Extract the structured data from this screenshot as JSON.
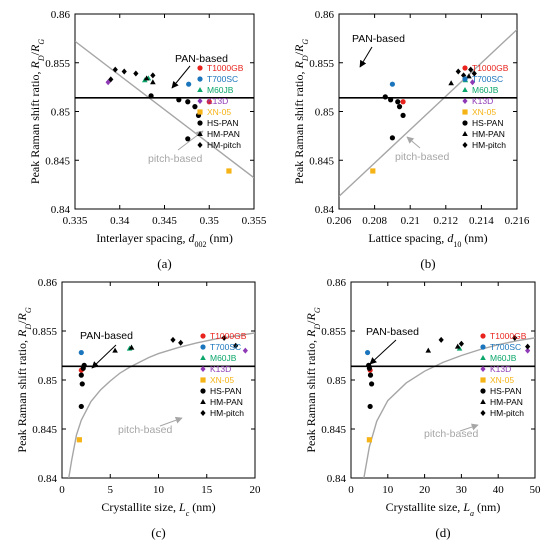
{
  "colors": {
    "T1000GB": "#e8231d",
    "T700SC": "#1b75bc",
    "M60JB": "#0aa66b",
    "K13D": "#8e3ab5",
    "XN-05": "#f5b316",
    "HS-PAN": "#000000",
    "HM-PAN": "#000000",
    "HM-pitch": "#000000",
    "pitch_line": "#a6a6a6",
    "pan_line": "#000000"
  },
  "legend": [
    "T1000GB",
    "T700SC",
    "M60JB",
    "K13D",
    "XN-05",
    "HS-PAN",
    "HM-PAN",
    "HM-pitch"
  ],
  "chart_data": [
    {
      "type": "scatter",
      "panel": "(a)",
      "ylabel": "Peak Raman shift ratio, R_D/R_G",
      "xlabel": "Interlayer spacing, d_002 (nm)",
      "xlim": [
        0.335,
        0.355
      ],
      "ylim": [
        0.84,
        0.86
      ],
      "xticks": [
        "0.335",
        "0.34",
        "0.345",
        "0.35",
        "0.355"
      ],
      "yticks": [
        "0.84",
        "0.845",
        "0.85",
        "0.855",
        "0.86"
      ],
      "pan_label": "PAN-based",
      "pitch_label": "pitch-based",
      "pan_level": 0.8514,
      "pitch_line": [
        [
          0.335,
          0.8572
        ],
        [
          0.355,
          0.8432
        ]
      ],
      "series": [
        {
          "name": "T1000GB",
          "marker": "circle",
          "points": [
            [
              0.35,
              0.851
            ]
          ]
        },
        {
          "name": "T700SC",
          "marker": "circle",
          "points": [
            [
              0.3477,
              0.8528
            ]
          ]
        },
        {
          "name": "M60JB",
          "marker": "triangle",
          "points": [
            [
              0.3428,
              0.8532
            ],
            [
              0.3432,
              0.8534
            ]
          ]
        },
        {
          "name": "K13D",
          "marker": "diamond",
          "points": [
            [
              0.3387,
              0.853
            ]
          ]
        },
        {
          "name": "XN-05",
          "marker": "square",
          "points": [
            [
              0.3522,
              0.8439
            ]
          ]
        },
        {
          "name": "HS-PAN",
          "marker": "circle",
          "points": [
            [
              0.3476,
              0.8472
            ],
            [
              0.3484,
              0.8505
            ],
            [
              0.3488,
              0.8496
            ],
            [
              0.3476,
              0.851
            ],
            [
              0.3466,
              0.8512
            ],
            [
              0.3435,
              0.8516
            ]
          ]
        },
        {
          "name": "HM-PAN",
          "marker": "triangle",
          "points": [
            [
              0.3437,
              0.853
            ],
            [
              0.343,
              0.8534
            ]
          ]
        },
        {
          "name": "HM-pitch",
          "marker": "diamond",
          "points": [
            [
              0.3395,
              0.8543
            ],
            [
              0.3405,
              0.8541
            ],
            [
              0.3418,
              0.8539
            ],
            [
              0.3437,
              0.8537
            ],
            [
              0.339,
              0.8533
            ]
          ]
        }
      ]
    },
    {
      "type": "scatter",
      "panel": "(b)",
      "ylabel": "Peak Raman shift ratio, R_D/R_G",
      "xlabel": "Lattice spacing, d_10 (nm)",
      "xlim": [
        0.206,
        0.216
      ],
      "ylim": [
        0.84,
        0.86
      ],
      "xticks": [
        "0.206",
        "0.208",
        "0.21",
        "0.212",
        "0.214",
        "0.216"
      ],
      "yticks": [
        "0.84",
        "0.845",
        "0.85",
        "0.855",
        "0.86"
      ],
      "pan_label": "PAN-based",
      "pitch_label": "pitch-based",
      "pan_level": 0.8514,
      "pitch_line": [
        [
          0.206,
          0.8413
        ],
        [
          0.216,
          0.8584
        ]
      ],
      "series": [
        {
          "name": "T1000GB",
          "marker": "circle",
          "points": [
            [
              0.2096,
              0.851
            ]
          ]
        },
        {
          "name": "T700SC",
          "marker": "circle",
          "points": [
            [
              0.209,
              0.8528
            ]
          ]
        },
        {
          "name": "M60JB",
          "marker": "triangle",
          "points": [
            [
              0.2131,
              0.8532
            ]
          ]
        },
        {
          "name": "K13D",
          "marker": "diamond",
          "points": [
            [
              0.2135,
              0.853
            ]
          ]
        },
        {
          "name": "XN-05",
          "marker": "square",
          "points": [
            [
              0.2079,
              0.8439
            ]
          ]
        },
        {
          "name": "HS-PAN",
          "marker": "circle",
          "points": [
            [
              0.209,
              0.8473
            ],
            [
              0.2086,
              0.8515
            ],
            [
              0.2089,
              0.8512
            ],
            [
              0.2093,
              0.851
            ],
            [
              0.2094,
              0.8505
            ],
            [
              0.2096,
              0.8496
            ]
          ]
        },
        {
          "name": "HM-PAN",
          "marker": "triangle",
          "points": [
            [
              0.2123,
              0.8529
            ],
            [
              0.2133,
              0.8536
            ]
          ]
        },
        {
          "name": "HM-pitch",
          "marker": "diamond",
          "points": [
            [
              0.2127,
              0.8541
            ],
            [
              0.213,
              0.8537
            ],
            [
              0.2134,
              0.8543
            ],
            [
              0.2136,
              0.8539
            ]
          ]
        }
      ]
    },
    {
      "type": "scatter",
      "panel": "(c)",
      "ylabel": "Peak Raman shift ratio, R_D/R_G",
      "xlabel": "Crystallite size, L_c (nm)",
      "xlim": [
        0,
        20
      ],
      "ylim": [
        0.84,
        0.86
      ],
      "xticks": [
        "0",
        "5",
        "10",
        "15",
        "20"
      ],
      "yticks": [
        "0.84",
        "0.845",
        "0.85",
        "0.855",
        "0.86"
      ],
      "pan_label": "PAN-based",
      "pitch_label": "pitch-based",
      "pan_level": 0.8514,
      "pitch_curve": [
        [
          0.7,
          0.84
        ],
        [
          1.0,
          0.8418
        ],
        [
          1.5,
          0.8444
        ],
        [
          2,
          0.8459
        ],
        [
          3,
          0.8478
        ],
        [
          4,
          0.849
        ],
        [
          5,
          0.8499
        ],
        [
          6,
          0.8507
        ],
        [
          7,
          0.8513
        ],
        [
          8,
          0.8518
        ],
        [
          9,
          0.8523
        ],
        [
          10,
          0.8527
        ],
        [
          12,
          0.8533
        ],
        [
          14,
          0.8538
        ],
        [
          16,
          0.8542
        ],
        [
          18,
          0.8545
        ],
        [
          20,
          0.8548
        ]
      ],
      "series": [
        {
          "name": "T1000GB",
          "marker": "circle",
          "points": [
            [
              2.0,
              0.851
            ]
          ]
        },
        {
          "name": "T700SC",
          "marker": "circle",
          "points": [
            [
              2.0,
              0.8528
            ]
          ]
        },
        {
          "name": "M60JB",
          "marker": "triangle",
          "points": [
            [
              7.0,
              0.8532
            ],
            [
              7.2,
              0.8533
            ]
          ]
        },
        {
          "name": "K13D",
          "marker": "diamond",
          "points": [
            [
              19.0,
              0.853
            ]
          ]
        },
        {
          "name": "XN-05",
          "marker": "square",
          "points": [
            [
              1.8,
              0.8439
            ]
          ]
        },
        {
          "name": "HS-PAN",
          "marker": "circle",
          "points": [
            [
              2.0,
              0.8473
            ],
            [
              2.1,
              0.8496
            ],
            [
              2.0,
              0.8505
            ],
            [
              2.2,
              0.8512
            ],
            [
              2.3,
              0.8515
            ]
          ]
        },
        {
          "name": "HM-PAN",
          "marker": "triangle",
          "points": [
            [
              5.5,
              0.853
            ],
            [
              7.2,
              0.8533
            ]
          ]
        },
        {
          "name": "HM-pitch",
          "marker": "diamond",
          "points": [
            [
              11.5,
              0.8541
            ],
            [
              12.3,
              0.8538
            ],
            [
              16.8,
              0.8543
            ],
            [
              18.0,
              0.8535
            ]
          ]
        }
      ]
    },
    {
      "type": "scatter",
      "panel": "(d)",
      "ylabel": "Peak Raman shift ratio, R_D/R_G",
      "xlabel": "Crystallite size, L_a (nm)",
      "xlim": [
        0,
        50
      ],
      "ylim": [
        0.84,
        0.86
      ],
      "xticks": [
        "0",
        "10",
        "20",
        "30",
        "40",
        "50"
      ],
      "yticks": [
        "0.84",
        "0.845",
        "0.85",
        "0.855",
        "0.86"
      ],
      "pan_label": "PAN-based",
      "pitch_label": "pitch-based",
      "pan_level": 0.8514,
      "pitch_curve": [
        [
          3.5,
          0.84
        ],
        [
          5,
          0.8432
        ],
        [
          7,
          0.8458
        ],
        [
          10,
          0.8479
        ],
        [
          15,
          0.8497
        ],
        [
          20,
          0.8509
        ],
        [
          25,
          0.8518
        ],
        [
          30,
          0.8525
        ],
        [
          35,
          0.8531
        ],
        [
          40,
          0.8536
        ],
        [
          45,
          0.854
        ],
        [
          50,
          0.8543
        ]
      ],
      "series": [
        {
          "name": "T1000GB",
          "marker": "circle",
          "points": [
            [
              5.2,
              0.851
            ]
          ]
        },
        {
          "name": "T700SC",
          "marker": "circle",
          "points": [
            [
              4.5,
              0.8528
            ]
          ]
        },
        {
          "name": "M60JB",
          "marker": "triangle",
          "points": [
            [
              29.5,
              0.8532
            ]
          ]
        },
        {
          "name": "K13D",
          "marker": "diamond",
          "points": [
            [
              48.0,
              0.853
            ]
          ]
        },
        {
          "name": "XN-05",
          "marker": "square",
          "points": [
            [
              5.0,
              0.8439
            ]
          ]
        },
        {
          "name": "HS-PAN",
          "marker": "circle",
          "points": [
            [
              4.8,
              0.8515
            ],
            [
              5.0,
              0.8512
            ],
            [
              5.3,
              0.8505
            ],
            [
              5.6,
              0.8496
            ],
            [
              5.2,
              0.8473
            ]
          ]
        },
        {
          "name": "HM-PAN",
          "marker": "triangle",
          "points": [
            [
              21.0,
              0.853
            ],
            [
              29.0,
              0.8534
            ]
          ]
        },
        {
          "name": "HM-pitch",
          "marker": "diamond",
          "points": [
            [
              24.5,
              0.8541
            ],
            [
              30.0,
              0.8537
            ],
            [
              44.5,
              0.8543
            ],
            [
              48.0,
              0.8534
            ]
          ]
        }
      ]
    }
  ]
}
